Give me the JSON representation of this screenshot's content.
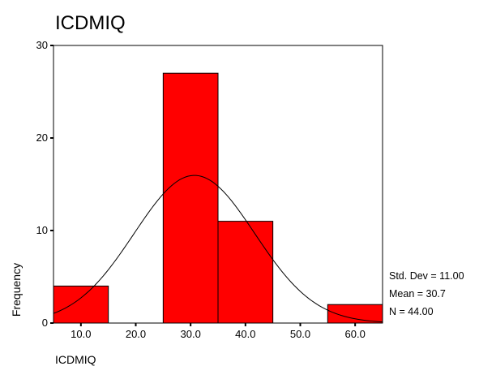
{
  "chart_data": {
    "type": "bar",
    "title": "ICDMIQ",
    "xlabel": "ICDMIQ",
    "ylabel": "Frequency",
    "bins": [
      {
        "x0": 5,
        "x1": 15,
        "value": 4
      },
      {
        "x0": 15,
        "x1": 25,
        "value": 0
      },
      {
        "x0": 25,
        "x1": 35,
        "value": 27
      },
      {
        "x0": 35,
        "x1": 45,
        "value": 11
      },
      {
        "x0": 45,
        "x1": 55,
        "value": 0
      },
      {
        "x0": 55,
        "x1": 65,
        "value": 2
      }
    ],
    "x_ticks": [
      {
        "value": 10,
        "label": "10.0"
      },
      {
        "value": 20,
        "label": "20.0"
      },
      {
        "value": 30,
        "label": "30.0"
      },
      {
        "value": 40,
        "label": "40.0"
      },
      {
        "value": 50,
        "label": "50.0"
      },
      {
        "value": 60,
        "label": "60.0"
      }
    ],
    "y_ticks": [
      {
        "value": 0,
        "label": "0"
      },
      {
        "value": 10,
        "label": "10"
      },
      {
        "value": 20,
        "label": "20"
      },
      {
        "value": 30,
        "label": "30"
      }
    ],
    "xlim": [
      5,
      65
    ],
    "ylim": [
      0,
      30
    ],
    "normal_curve": {
      "mean": 30.7,
      "std": 11.0,
      "n": 44,
      "bin_width": 10
    },
    "stats": [
      {
        "label": "Std. Dev = 11.00"
      },
      {
        "label": "Mean = 30.7"
      },
      {
        "label": "N = 44.00"
      }
    ],
    "bar_color": "#ff0000",
    "grid": false
  }
}
